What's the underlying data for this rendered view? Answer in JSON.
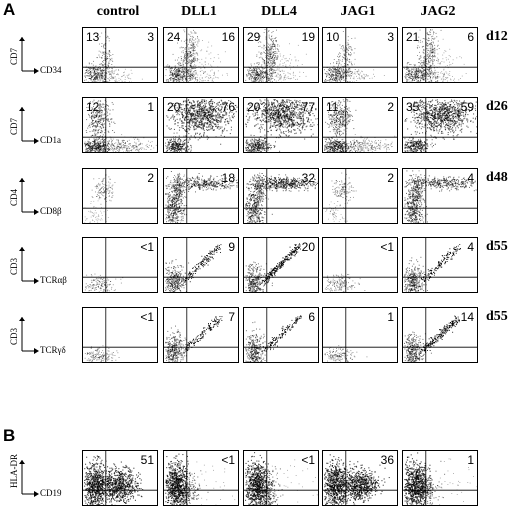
{
  "panel_labels": {
    "a": "A",
    "b": "B"
  },
  "columns": [
    "control",
    "DLL1",
    "DLL4",
    "JAG1",
    "JAG2"
  ],
  "rows_a": [
    {
      "day": "d12",
      "ylabel": "CD7",
      "xlabel": "CD34",
      "values": [
        [
          "13",
          "3"
        ],
        [
          "24",
          "16"
        ],
        [
          "29",
          "19"
        ],
        [
          "10",
          "3"
        ],
        [
          "21",
          "6"
        ]
      ]
    },
    {
      "day": "d26",
      "ylabel": "CD7",
      "xlabel": "CD1a",
      "values": [
        [
          "12",
          "1"
        ],
        [
          "20",
          "76"
        ],
        [
          "20",
          "77"
        ],
        [
          "11",
          "2"
        ],
        [
          "35",
          "59"
        ]
      ]
    },
    {
      "day": "d48",
      "ylabel": "CD4",
      "xlabel": "CD8β",
      "values": [
        [
          "",
          "2"
        ],
        [
          "",
          "18"
        ],
        [
          "",
          "32"
        ],
        [
          "",
          "2"
        ],
        [
          "",
          "4"
        ]
      ]
    },
    {
      "day": "d55",
      "ylabel": "CD3",
      "xlabel": "TCRαβ",
      "values": [
        [
          "",
          "<1"
        ],
        [
          "",
          "9"
        ],
        [
          "",
          "20"
        ],
        [
          "",
          "<1"
        ],
        [
          "",
          "4"
        ]
      ]
    },
    {
      "day": "d55",
      "ylabel": "CD3",
      "xlabel": "TCRγδ",
      "values": [
        [
          "",
          "<1"
        ],
        [
          "",
          "7"
        ],
        [
          "",
          "6"
        ],
        [
          "",
          "1"
        ],
        [
          "",
          "14"
        ]
      ]
    }
  ],
  "row_b": {
    "ylabel": "HLA-DR",
    "xlabel": "CD19",
    "values": [
      [
        "",
        "51"
      ],
      [
        "",
        "<1"
      ],
      [
        "",
        "<1"
      ],
      [
        "",
        "36"
      ],
      [
        "",
        "1"
      ]
    ]
  }
}
